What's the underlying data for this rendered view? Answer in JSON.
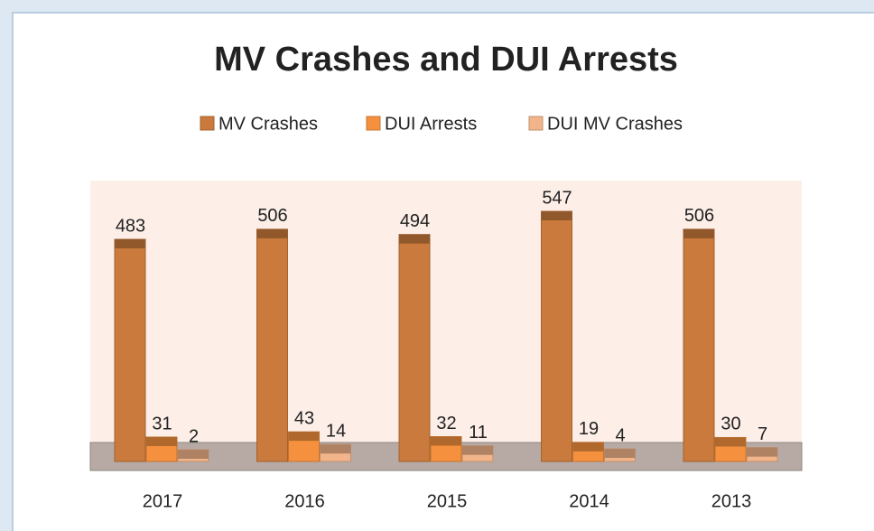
{
  "chart_data": {
    "type": "bar",
    "title": "MV Crashes and DUI Arrests",
    "categories": [
      "2017",
      "2016",
      "2015",
      "2014",
      "2013"
    ],
    "series": [
      {
        "name": "MV Crashes",
        "color": "#c97a3c",
        "values": [
          483,
          506,
          494,
          547,
          506
        ]
      },
      {
        "name": "DUI Arrests",
        "color": "#f5913e",
        "values": [
          31,
          43,
          32,
          19,
          30
        ]
      },
      {
        "name": "DUI MV Crashes",
        "color": "#f2b48a",
        "values": [
          2,
          14,
          11,
          4,
          7
        ]
      }
    ]
  }
}
